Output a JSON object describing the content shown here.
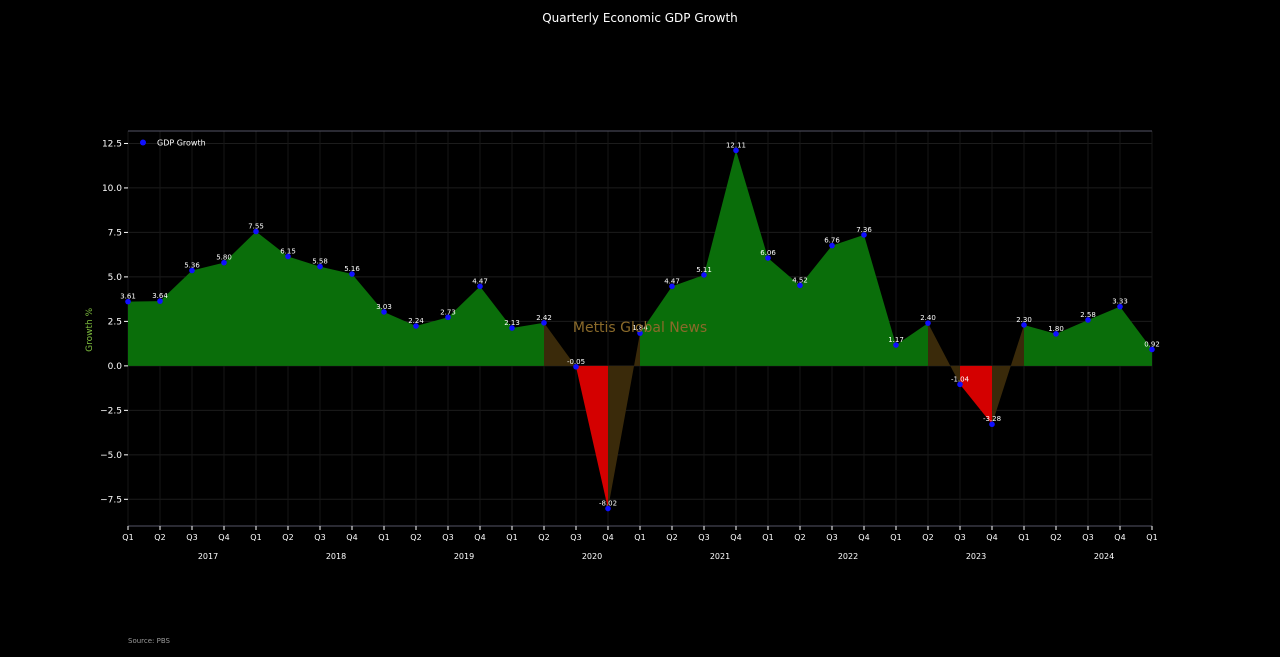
{
  "title": "Quarterly Economic GDP Growth",
  "source": "Source: PBS",
  "watermark": "Mettis Global News",
  "colors": {
    "background": "#000000",
    "positive_fill": "#0a6e0a",
    "negative_fill": "#d40000",
    "transition_fill": "#3a2a0a",
    "marker": "#1010ff",
    "ylabel": "#7fbf3f",
    "watermark": "#8a6a2a"
  },
  "chart_data": {
    "type": "area",
    "title": "Quarterly Economic GDP Growth",
    "ylabel": "Growth %",
    "xlabel": "",
    "legend": {
      "label": "GDP Growth",
      "position": "top-left"
    },
    "ylim": [
      -9,
      13.2
    ],
    "yticks": [
      -7.5,
      -5.0,
      -2.5,
      0.0,
      2.5,
      5.0,
      7.5,
      10.0,
      12.5
    ],
    "grid": true,
    "quarters": [
      "Q1",
      "Q2",
      "Q3",
      "Q4",
      "Q1",
      "Q2",
      "Q3",
      "Q4",
      "Q1",
      "Q2",
      "Q3",
      "Q4",
      "Q1",
      "Q2",
      "Q3",
      "Q4",
      "Q1",
      "Q2",
      "Q3",
      "Q4",
      "Q1",
      "Q2",
      "Q3",
      "Q4",
      "Q1",
      "Q2",
      "Q3",
      "Q4",
      "Q1",
      "Q2",
      "Q3",
      "Q4",
      "Q1"
    ],
    "years": [
      {
        "label": "2017",
        "index": 3
      },
      {
        "label": "2018",
        "index": 7
      },
      {
        "label": "2019",
        "index": 11
      },
      {
        "label": "2020",
        "index": 15
      },
      {
        "label": "2021",
        "index": 19
      },
      {
        "label": "2022",
        "index": 23
      },
      {
        "label": "2023",
        "index": 27
      },
      {
        "label": "2024",
        "index": 31
      }
    ],
    "values": [
      3.61,
      3.64,
      5.36,
      5.8,
      7.55,
      6.15,
      5.58,
      5.16,
      3.03,
      2.24,
      2.73,
      4.47,
      2.13,
      2.42,
      -0.05,
      -8.02,
      1.84,
      4.47,
      5.11,
      12.11,
      6.06,
      4.52,
      6.76,
      7.36,
      1.17,
      2.4,
      -1.04,
      -3.28,
      2.3,
      1.8,
      2.58,
      3.33,
      0.92
    ],
    "labels": [
      "3.61",
      "3.64",
      "5.36",
      "5.80",
      "7.55",
      "6.15",
      "5.58",
      "5.16",
      "3.03",
      "2.24",
      "2.73",
      "4.47",
      "2.13",
      "2.42",
      "-0.05",
      "-8.02",
      "1.84",
      "4.47",
      "5.11",
      "12.11",
      "6.06",
      "4.52",
      "6.76",
      "7.36",
      "1.17",
      "2.40",
      "-1.04",
      "-3.28",
      "2.30",
      "1.80",
      "2.58",
      "3.33",
      "0.92"
    ]
  }
}
